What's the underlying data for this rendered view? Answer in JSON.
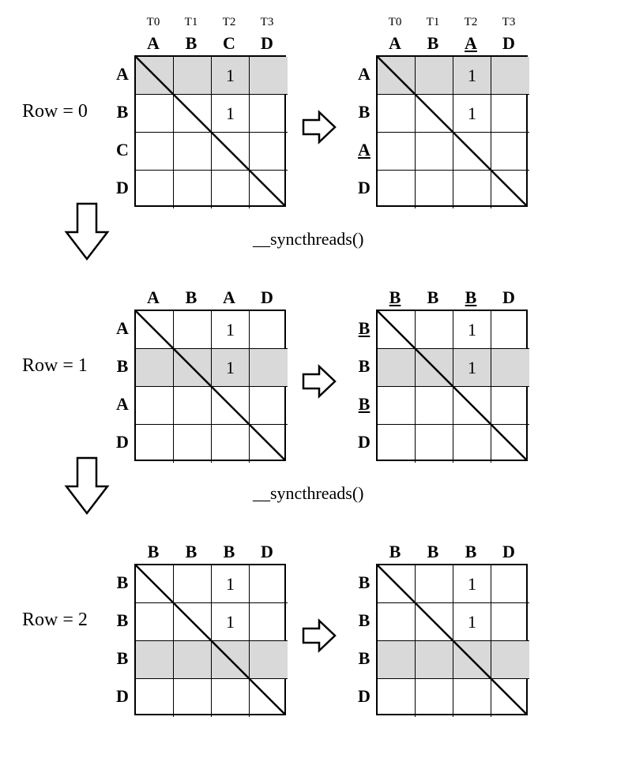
{
  "global": {
    "thread_labels": [
      "T0",
      "T1",
      "T2",
      "T3"
    ],
    "sync_label": "__syncthreads()",
    "cell_size": 48,
    "grid_size": 4,
    "border_color": "#000000",
    "shade_color": "#d9d9d9",
    "bg_color": "#ffffff",
    "diag_stroke_width": 2.5,
    "font_family": "Times New Roman"
  },
  "rows": [
    {
      "label": "Row = 0",
      "left": {
        "show_threads": true,
        "col_labels": [
          {
            "t": "A"
          },
          {
            "t": "B"
          },
          {
            "t": "C"
          },
          {
            "t": "D"
          }
        ],
        "row_labels": [
          {
            "t": "A"
          },
          {
            "t": "B"
          },
          {
            "t": "C"
          },
          {
            "t": "D"
          }
        ],
        "shaded_row": 0,
        "cells": [
          {
            "r": 0,
            "c": 2,
            "v": "1"
          },
          {
            "r": 1,
            "c": 2,
            "v": "1"
          }
        ]
      },
      "right": {
        "show_threads": true,
        "col_labels": [
          {
            "t": "A"
          },
          {
            "t": "B"
          },
          {
            "t": "A",
            "u": true
          },
          {
            "t": "D"
          }
        ],
        "row_labels": [
          {
            "t": "A"
          },
          {
            "t": "B"
          },
          {
            "t": "A",
            "u": true
          },
          {
            "t": "D"
          }
        ],
        "shaded_row": 0,
        "cells": [
          {
            "r": 0,
            "c": 2,
            "v": "1"
          },
          {
            "r": 1,
            "c": 2,
            "v": "1"
          }
        ]
      },
      "down_arrow_after": true,
      "sync_after": true
    },
    {
      "label": "Row = 1",
      "left": {
        "show_threads": false,
        "col_labels": [
          {
            "t": "A"
          },
          {
            "t": "B"
          },
          {
            "t": "A"
          },
          {
            "t": "D"
          }
        ],
        "row_labels": [
          {
            "t": "A"
          },
          {
            "t": "B"
          },
          {
            "t": "A"
          },
          {
            "t": "D"
          }
        ],
        "shaded_row": 1,
        "cells": [
          {
            "r": 0,
            "c": 2,
            "v": "1"
          },
          {
            "r": 1,
            "c": 2,
            "v": "1"
          }
        ]
      },
      "right": {
        "show_threads": false,
        "col_labels": [
          {
            "t": "B",
            "u": true
          },
          {
            "t": "B"
          },
          {
            "t": "B",
            "u": true
          },
          {
            "t": "D"
          }
        ],
        "row_labels": [
          {
            "t": "B",
            "u": true
          },
          {
            "t": "B"
          },
          {
            "t": "B",
            "u": true
          },
          {
            "t": "D"
          }
        ],
        "shaded_row": 1,
        "cells": [
          {
            "r": 0,
            "c": 2,
            "v": "1"
          },
          {
            "r": 1,
            "c": 2,
            "v": "1"
          }
        ]
      },
      "down_arrow_after": true,
      "sync_after": true
    },
    {
      "label": "Row = 2",
      "left": {
        "show_threads": false,
        "col_labels": [
          {
            "t": "B"
          },
          {
            "t": "B"
          },
          {
            "t": "B"
          },
          {
            "t": "D"
          }
        ],
        "row_labels": [
          {
            "t": "B"
          },
          {
            "t": "B"
          },
          {
            "t": "B"
          },
          {
            "t": "D"
          }
        ],
        "shaded_row": 2,
        "cells": [
          {
            "r": 0,
            "c": 2,
            "v": "1"
          },
          {
            "r": 1,
            "c": 2,
            "v": "1"
          }
        ]
      },
      "right": {
        "show_threads": false,
        "col_labels": [
          {
            "t": "B"
          },
          {
            "t": "B"
          },
          {
            "t": "B"
          },
          {
            "t": "D"
          }
        ],
        "row_labels": [
          {
            "t": "B"
          },
          {
            "t": "B"
          },
          {
            "t": "B"
          },
          {
            "t": "D"
          }
        ],
        "shaded_row": 2,
        "cells": [
          {
            "r": 0,
            "c": 2,
            "v": "1"
          },
          {
            "r": 1,
            "c": 2,
            "v": "1"
          }
        ]
      },
      "down_arrow_after": false,
      "sync_after": false
    }
  ]
}
